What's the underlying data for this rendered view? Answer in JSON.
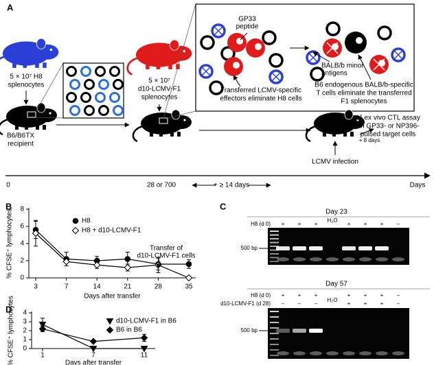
{
  "panel_a": {
    "label": "A",
    "donor_h8": [
      "5 × 10⁷ H8",
      "splenocytes"
    ],
    "recipient": [
      "B6/B6TX",
      "recipient"
    ],
    "donor_f1": [
      "5 × 10⁷",
      "d10-LCMV-F1",
      "splenocytes"
    ],
    "peptide": [
      "GP33",
      "peptide"
    ],
    "antigens": [
      "BALB/b minor",
      "antigens"
    ],
    "effectors": [
      "Transferred LCMV-specific",
      "effectors eliminate H8 cells"
    ],
    "endogenous": [
      "B6 endogenous BALB/b-specific",
      "T cells eliminate the transferred",
      "F1 splenocytes"
    ],
    "wait": "+ 8 days",
    "assay": [
      "1° ex vivo CTL assay",
      "on GP33- or NP396-",
      "pulsed target cells"
    ],
    "infection": "LCMV infection",
    "timeline": {
      "start": "0",
      "transfer": "28 or 700",
      "interval": "+ ≥ 14 days",
      "unit": "Days"
    }
  },
  "chart_data": [
    {
      "type": "line",
      "panel_label": "B",
      "x_label": "Days after transfer",
      "y_label": "% CFSE⁺ lymphocytes",
      "categories": [
        3,
        7,
        14,
        21,
        28,
        35
      ],
      "ylim": [
        0,
        8
      ],
      "yticks": [
        0,
        2,
        4,
        6,
        8
      ],
      "annotation": [
        "Transfer of",
        "d10-LCMV-F1 cells"
      ],
      "series": [
        {
          "name": "H8",
          "color": "#000000",
          "marker": "circle",
          "values": [
            5.6,
            2.2,
            2.0,
            2.2,
            1.6,
            1.6
          ],
          "errors": [
            1.0,
            0.8,
            0.5,
            0.8,
            0.7,
            0.5
          ]
        },
        {
          "name": "H8 + d10-LCMV-F1",
          "color": "#000000",
          "marker": "diamond-open",
          "values": [
            5.2,
            1.9,
            1.5,
            1.2,
            1.5,
            0
          ],
          "errors": [
            1.5,
            0.5,
            0.4,
            0.4,
            0.9,
            0.1
          ]
        }
      ]
    },
    {
      "type": "line",
      "panel_label": "D",
      "x_label": "Days after transfer",
      "y_label": "% CFSE⁺ lymphocytes",
      "categories": [
        1,
        7,
        11
      ],
      "ylim": [
        0,
        4
      ],
      "yticks": [
        0,
        1,
        2,
        3,
        4
      ],
      "series": [
        {
          "name": "d10-LCMV-F1 in B6",
          "color": "#000000",
          "marker": "triangle-down",
          "values": [
            2.7,
            0,
            0
          ],
          "errors": [
            0.7,
            0,
            0
          ]
        },
        {
          "name": "B6 in B6",
          "color": "#000000",
          "marker": "diamond",
          "values": [
            2.2,
            0.8,
            1.2
          ],
          "errors": [
            0.3,
            0.1,
            0.4
          ]
        }
      ]
    }
  ],
  "panel_c": {
    "label": "C",
    "gels": [
      {
        "title": "Day 23",
        "water": "H₂O",
        "marker": "500 bp",
        "rows": [
          {
            "name": "H8 (d 0)",
            "signs": [
              "+",
              "+",
              "+",
              "+",
              "+",
              "+",
              "–"
            ]
          }
        ]
      },
      {
        "title": "Day 57",
        "water": "H₂O",
        "marker": "500 bp",
        "rows": [
          {
            "name": "H8 (d 0)",
            "signs": [
              "+",
              "+",
              "+",
              "+",
              "+",
              "+",
              "–"
            ]
          },
          {
            "name": "d10-LCMV-F1 (d 28)",
            "signs": [
              "–",
              "–",
              "–",
              "+",
              "+",
              "+",
              "–"
            ]
          }
        ]
      }
    ]
  }
}
